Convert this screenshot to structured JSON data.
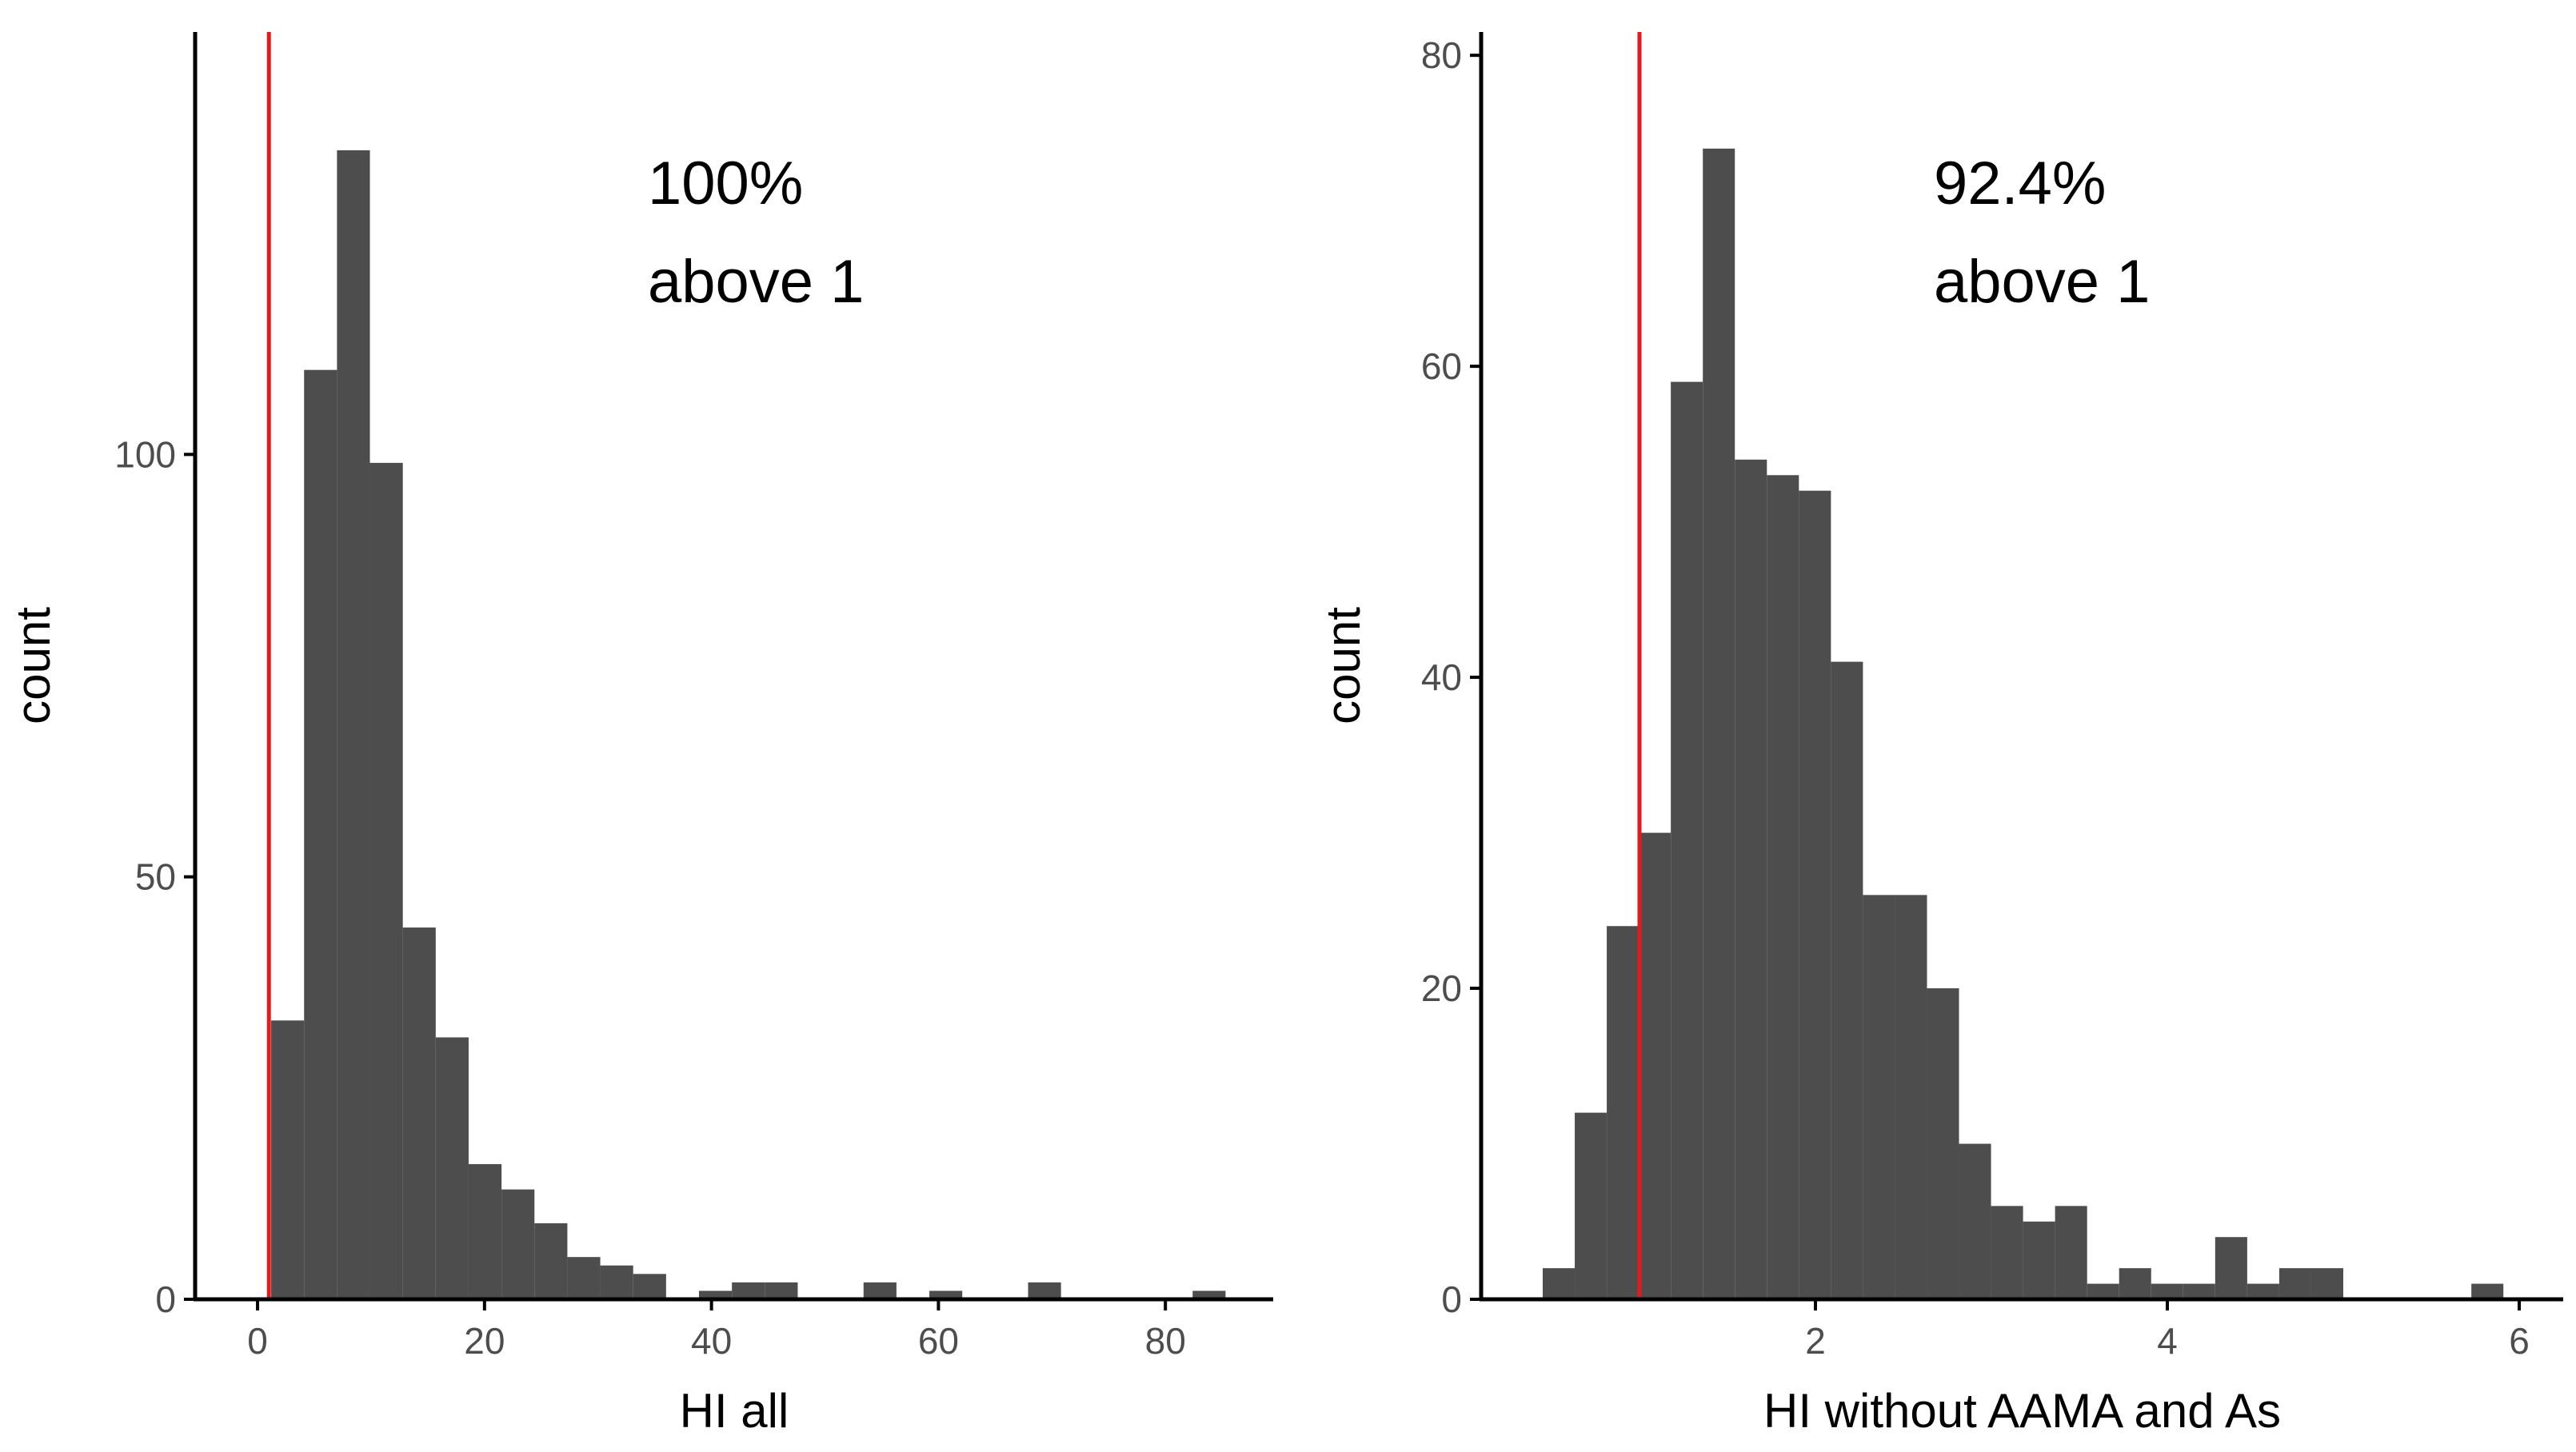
{
  "chart_data": [
    {
      "type": "bar",
      "xlabel": "HI all",
      "ylabel": "count",
      "xlim": [
        -5.5,
        89.5
      ],
      "ylim": [
        0,
        150
      ],
      "x_ticks": [
        0,
        20,
        40,
        60,
        80
      ],
      "y_ticks": [
        0,
        50,
        100
      ],
      "bin_width": 2.9,
      "bins": [
        {
          "x0": 1.2,
          "count": 33
        },
        {
          "x0": 4.1,
          "count": 110
        },
        {
          "x0": 7.0,
          "count": 136
        },
        {
          "x0": 9.9,
          "count": 99
        },
        {
          "x0": 12.8,
          "count": 44
        },
        {
          "x0": 15.7,
          "count": 31
        },
        {
          "x0": 18.6,
          "count": 16
        },
        {
          "x0": 21.5,
          "count": 13
        },
        {
          "x0": 24.4,
          "count": 9
        },
        {
          "x0": 27.3,
          "count": 5
        },
        {
          "x0": 30.2,
          "count": 4
        },
        {
          "x0": 33.1,
          "count": 3
        },
        {
          "x0": 36.0,
          "count": 0
        },
        {
          "x0": 38.9,
          "count": 1
        },
        {
          "x0": 41.8,
          "count": 2
        },
        {
          "x0": 44.7,
          "count": 2
        },
        {
          "x0": 47.6,
          "count": 0
        },
        {
          "x0": 50.5,
          "count": 0
        },
        {
          "x0": 53.4,
          "count": 2
        },
        {
          "x0": 56.3,
          "count": 0
        },
        {
          "x0": 59.2,
          "count": 1
        },
        {
          "x0": 62.1,
          "count": 0
        },
        {
          "x0": 65.0,
          "count": 0
        },
        {
          "x0": 67.9,
          "count": 2
        },
        {
          "x0": 70.8,
          "count": 0
        },
        {
          "x0": 73.7,
          "count": 0
        },
        {
          "x0": 76.6,
          "count": 0
        },
        {
          "x0": 79.5,
          "count": 0
        },
        {
          "x0": 82.4,
          "count": 1
        }
      ],
      "reference_line_x": 1,
      "annotation": [
        "100%",
        "above 1"
      ],
      "grid": false
    },
    {
      "type": "bar",
      "xlabel": "HI without AAMA and As",
      "ylabel": "count",
      "xlim": [
        0.1,
        6.25
      ],
      "ylim": [
        0,
        81.5
      ],
      "x_ticks": [
        2,
        4,
        6
      ],
      "y_ticks": [
        0,
        20,
        40,
        60,
        80
      ],
      "bin_width": 0.182,
      "bins": [
        {
          "x0": 0.45,
          "count": 2
        },
        {
          "x0": 0.632,
          "count": 12
        },
        {
          "x0": 0.814,
          "count": 24
        },
        {
          "x0": 0.996,
          "count": 30
        },
        {
          "x0": 1.178,
          "count": 59
        },
        {
          "x0": 1.36,
          "count": 74
        },
        {
          "x0": 1.542,
          "count": 54
        },
        {
          "x0": 1.724,
          "count": 53
        },
        {
          "x0": 1.906,
          "count": 52
        },
        {
          "x0": 2.088,
          "count": 41
        },
        {
          "x0": 2.27,
          "count": 26
        },
        {
          "x0": 2.452,
          "count": 26
        },
        {
          "x0": 2.634,
          "count": 20
        },
        {
          "x0": 2.816,
          "count": 10
        },
        {
          "x0": 2.998,
          "count": 6
        },
        {
          "x0": 3.18,
          "count": 5
        },
        {
          "x0": 3.362,
          "count": 6
        },
        {
          "x0": 3.544,
          "count": 1
        },
        {
          "x0": 3.726,
          "count": 2
        },
        {
          "x0": 3.908,
          "count": 1
        },
        {
          "x0": 4.09,
          "count": 1
        },
        {
          "x0": 4.272,
          "count": 4
        },
        {
          "x0": 4.454,
          "count": 1
        },
        {
          "x0": 4.636,
          "count": 2
        },
        {
          "x0": 4.818,
          "count": 2
        },
        {
          "x0": 5.0,
          "count": 0
        },
        {
          "x0": 5.182,
          "count": 0
        },
        {
          "x0": 5.364,
          "count": 0
        },
        {
          "x0": 5.546,
          "count": 0
        },
        {
          "x0": 5.728,
          "count": 1
        }
      ],
      "reference_line_x": 1,
      "annotation": [
        "92.4%",
        "above 1"
      ],
      "grid": false
    }
  ],
  "colors": {
    "bar": "#4d4d4d",
    "reference_line": "#e31a1c",
    "axis": "#000000",
    "tick_label": "#4d4d4d"
  }
}
